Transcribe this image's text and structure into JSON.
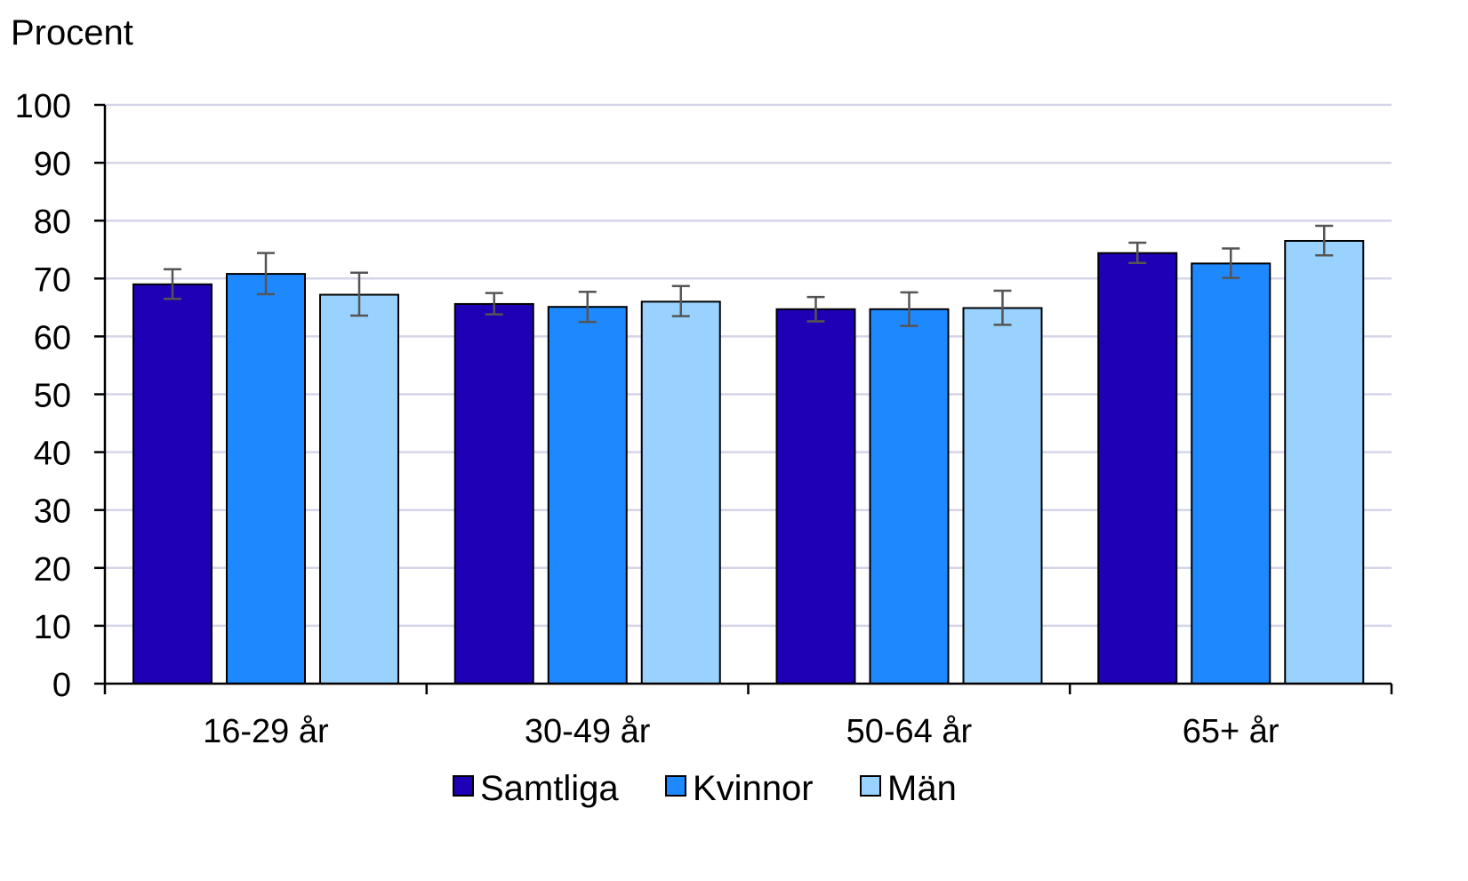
{
  "chart_data": {
    "type": "bar",
    "unit_label": "Procent",
    "categories": [
      "16-29 år",
      "30-49 år",
      "50-64 år",
      "65+ år"
    ],
    "series": [
      {
        "name": "Samtliga",
        "color": "#1f00b5",
        "values": [
          69.0,
          65.6,
          64.7,
          74.4
        ],
        "error_low": [
          66.5,
          63.8,
          62.6,
          72.7
        ],
        "error_high": [
          71.6,
          67.5,
          66.8,
          76.2
        ]
      },
      {
        "name": "Kvinnor",
        "color": "#1e88ff",
        "values": [
          70.8,
          65.1,
          64.7,
          72.6
        ],
        "error_low": [
          67.3,
          62.5,
          61.8,
          70.1
        ],
        "error_high": [
          74.4,
          67.7,
          67.6,
          75.2
        ]
      },
      {
        "name": "Män",
        "color": "#99d2ff",
        "values": [
          67.2,
          66.0,
          64.9,
          76.5
        ],
        "error_low": [
          63.6,
          63.5,
          62.0,
          74.0
        ],
        "error_high": [
          71.0,
          68.7,
          67.9,
          79.1
        ]
      }
    ],
    "ylim": [
      0,
      100
    ],
    "yticks": [
      "0",
      "10",
      "20",
      "30",
      "40",
      "50",
      "60",
      "70",
      "80",
      "90",
      "100"
    ],
    "grid": true,
    "legend_position": "bottom-center"
  }
}
